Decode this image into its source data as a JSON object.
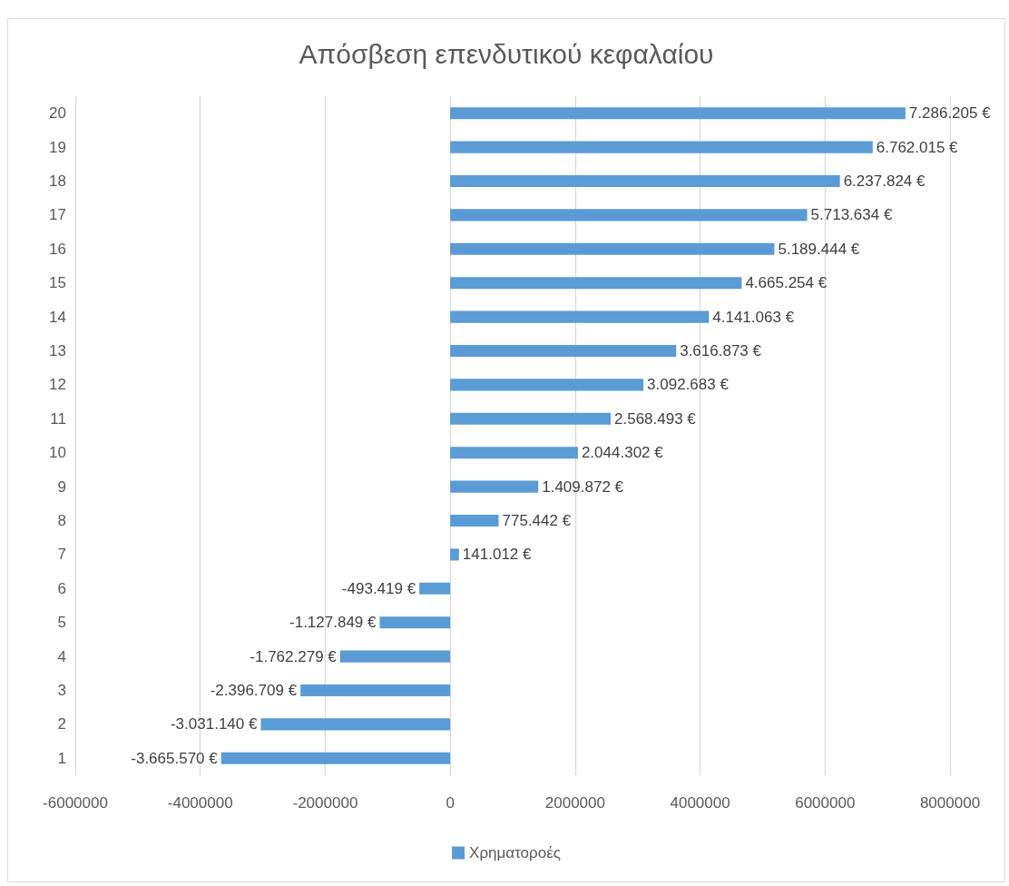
{
  "chart_data": {
    "type": "bar",
    "orientation": "horizontal",
    "title": "Απόσβεση επενδυτικού κεφαλαίου",
    "categories": [
      "20",
      "19",
      "18",
      "17",
      "16",
      "15",
      "14",
      "13",
      "12",
      "11",
      "10",
      "9",
      "8",
      "7",
      "6",
      "5",
      "4",
      "3",
      "2",
      "1"
    ],
    "series": [
      {
        "name": "Χρηματοροές",
        "color": "#5b9bd5",
        "values": [
          7286205,
          6762015,
          6237824,
          5713634,
          5189444,
          4665254,
          4141063,
          3616873,
          3092683,
          2568493,
          2044302,
          1409872,
          775442,
          141012,
          -493419,
          -1127849,
          -1762279,
          -2396709,
          -3031140,
          -3665570
        ],
        "value_labels": [
          "7.286.205 €",
          "6.762.015 €",
          "6.237.824 €",
          "5.713.634 €",
          "5.189.444 €",
          "4.665.254 €",
          "4.141.063 €",
          "3.616.873 €",
          "3.092.683 €",
          "2.568.493 €",
          "2.044.302 €",
          "1.409.872 €",
          "775.442 €",
          "141.012 €",
          "-493.419 €",
          "-1.127.849 €",
          "-1.762.279 €",
          "-2.396.709 €",
          "-3.031.140 €",
          "-3.665.570 €"
        ]
      }
    ],
    "xlim": [
      -6000000,
      8000000
    ],
    "xticks": [
      -6000000,
      -4000000,
      -2000000,
      0,
      2000000,
      4000000,
      6000000,
      8000000
    ],
    "grid": "x",
    "legend": "bottom"
  }
}
